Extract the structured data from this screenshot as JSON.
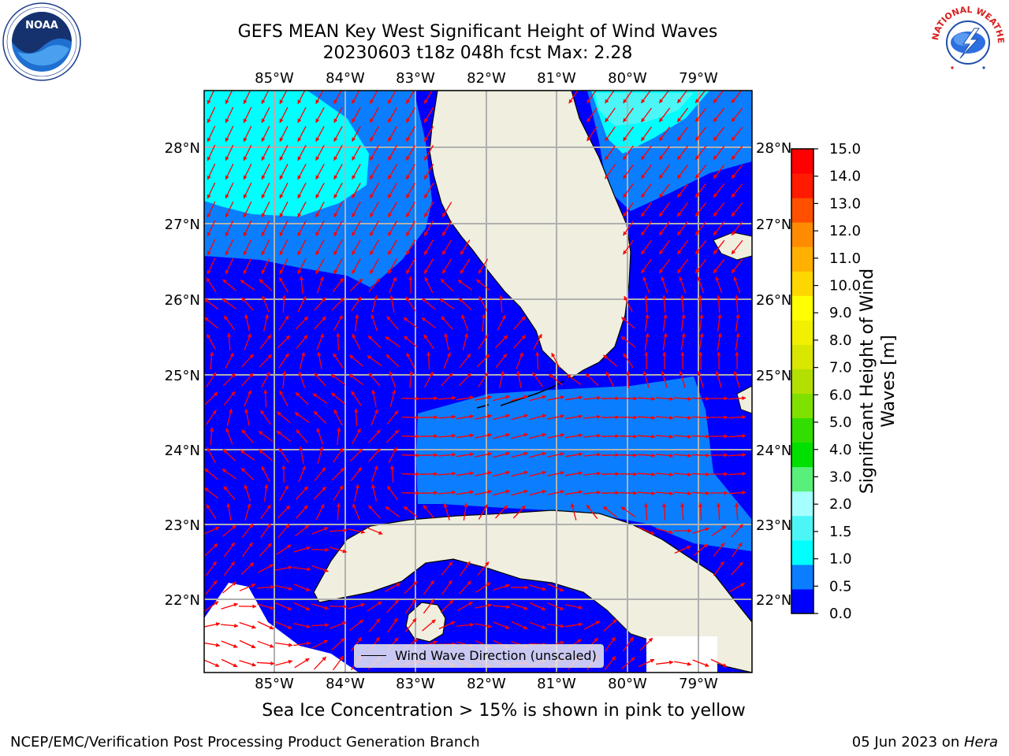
{
  "title": {
    "line1": "GEFS MEAN Key West Significant Height of Wind Waves",
    "line2": "20230603 t18z 048h fcst   Max: 2.28"
  },
  "map": {
    "lon_ticks": [
      "85°W",
      "84°W",
      "83°W",
      "82°W",
      "81°W",
      "80°W",
      "79°W"
    ],
    "lat_ticks": [
      "28°N",
      "27°N",
      "26°N",
      "25°N",
      "24°N",
      "23°N",
      "22°N"
    ],
    "legend_label": "Wind Wave Direction (unscaled)",
    "arrow_color": "#ff0000",
    "land_color": "#efeedf",
    "ocean_colors": {
      "0.0-0.5": "#0000ff",
      "0.5-1.0": "#0a7eff",
      "1.0-1.5": "#00ffff",
      "1.5-2.0": "#4df6f6"
    }
  },
  "colorbar": {
    "label": "Significant Height of Wind Waves [m]",
    "ticks": [
      "15.0",
      "14.0",
      "13.0",
      "12.0",
      "11.0",
      "10.0",
      "9.0",
      "8.0",
      "7.0",
      "6.0",
      "5.0",
      "4.0",
      "3.0",
      "2.0",
      "1.5",
      "1.0",
      "0.5",
      "0.0"
    ],
    "colors": [
      "#0000ff",
      "#0a7eff",
      "#00ffff",
      "#4df6f6",
      "#a6ffff",
      "#58f07a",
      "#00e000",
      "#33dd00",
      "#80e000",
      "#b3e000",
      "#d8e600",
      "#f0f000",
      "#ffff00",
      "#ffd700",
      "#ffb000",
      "#ff8c00",
      "#ff5000",
      "#ff1a00",
      "#ff0000"
    ]
  },
  "caption": "Sea Ice Concentration > 15% is shown in pink to yellow",
  "footer": {
    "left": "NCEP/EMC/Verification Post Processing Product Generation Branch",
    "right_date": "05 Jun 2023 on ",
    "right_host": "Hera"
  },
  "logos": {
    "left": "NOAA",
    "right": "NATIONAL WEATHER SERVICE"
  }
}
